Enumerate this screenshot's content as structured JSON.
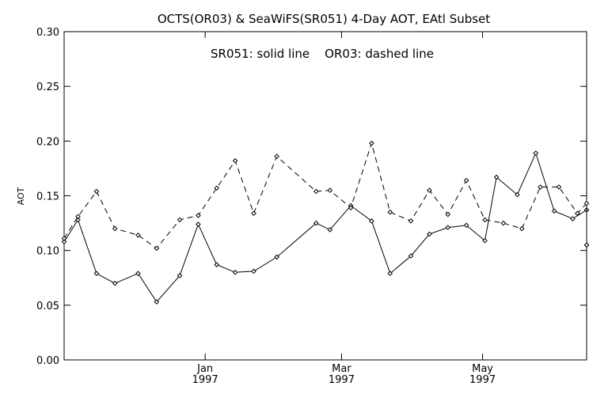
{
  "chart_data": {
    "type": "line",
    "title": "OCTS(OR03) & SeaWiFS(SR051) 4-Day AOT, EAtl Subset",
    "subtitle": "SR051: solid line    OR03: dashed line",
    "ylabel": "AOT",
    "xlabel": "",
    "ylim": [
      0.0,
      0.3
    ],
    "yticks": [
      "0.00",
      "0.05",
      "0.10",
      "0.15",
      "0.20",
      "0.25",
      "0.30"
    ],
    "xlim": [
      "1996-11-01",
      "1997-06-15"
    ],
    "xticks": [
      {
        "date": "1997-01-01",
        "month": "Jan",
        "year": "1997"
      },
      {
        "date": "1997-03-01",
        "month": "Mar",
        "year": "1997"
      },
      {
        "date": "1997-05-01",
        "month": "May",
        "year": "1997"
      }
    ],
    "grid": false,
    "series": [
      {
        "name": "SR051",
        "style": "solid",
        "points": [
          [
            "1996-11-01",
            0.108
          ],
          [
            "1996-11-07",
            0.128
          ],
          [
            "1996-11-15",
            0.079
          ],
          [
            "1996-11-23",
            0.07
          ],
          [
            "1996-12-03",
            0.079
          ],
          [
            "1996-12-11",
            0.053
          ],
          [
            "1996-12-21",
            0.077
          ],
          [
            "1996-12-29",
            0.124
          ],
          [
            "1997-01-06",
            0.087
          ],
          [
            "1997-01-14",
            0.08
          ],
          [
            "1997-01-22",
            0.081
          ],
          [
            "1997-02-01",
            0.094
          ],
          [
            "1997-02-18",
            0.125
          ],
          [
            "1997-02-24",
            0.119
          ],
          [
            "1997-03-05",
            0.141
          ],
          [
            "1997-03-14",
            0.127
          ],
          [
            "1997-03-22",
            0.079
          ],
          [
            "1997-03-31",
            0.095
          ],
          [
            "1997-04-08",
            0.115
          ],
          [
            "1997-04-16",
            0.121
          ],
          [
            "1997-04-24",
            0.123
          ],
          [
            "1997-05-02",
            0.109
          ],
          [
            "1997-05-07",
            0.167
          ],
          [
            "1997-05-16",
            0.151
          ],
          [
            "1997-05-24",
            0.189
          ],
          [
            "1997-06-01",
            0.136
          ],
          [
            "1997-06-09",
            0.129
          ],
          [
            "1997-06-15",
            0.137
          ],
          [
            "1997-06-19",
            0.105
          ]
        ]
      },
      {
        "name": "OR03",
        "style": "dashed",
        "points": [
          [
            "1996-11-01",
            0.111
          ],
          [
            "1996-11-07",
            0.131
          ],
          [
            "1996-11-15",
            0.154
          ],
          [
            "1996-11-23",
            0.12
          ],
          [
            "1996-12-03",
            0.114
          ],
          [
            "1996-12-11",
            0.102
          ],
          [
            "1996-12-21",
            0.128
          ],
          [
            "1996-12-29",
            0.132
          ],
          [
            "1997-01-06",
            0.157
          ],
          [
            "1997-01-14",
            0.182
          ],
          [
            "1997-01-22",
            0.134
          ],
          [
            "1997-02-01",
            0.186
          ],
          [
            "1997-02-18",
            0.154
          ],
          [
            "1997-02-24",
            0.155
          ],
          [
            "1997-03-05",
            0.139
          ],
          [
            "1997-03-14",
            0.198
          ],
          [
            "1997-03-22",
            0.135
          ],
          [
            "1997-03-31",
            0.127
          ],
          [
            "1997-04-08",
            0.155
          ],
          [
            "1997-04-16",
            0.133
          ],
          [
            "1997-04-24",
            0.164
          ],
          [
            "1997-05-02",
            0.128
          ],
          [
            "1997-05-10",
            0.125
          ],
          [
            "1997-05-18",
            0.12
          ],
          [
            "1997-05-26",
            0.158
          ],
          [
            "1997-06-03",
            0.158
          ],
          [
            "1997-06-11",
            0.134
          ],
          [
            "1997-06-17",
            0.143
          ],
          [
            "1997-06-19",
            0.105
          ]
        ]
      }
    ]
  }
}
